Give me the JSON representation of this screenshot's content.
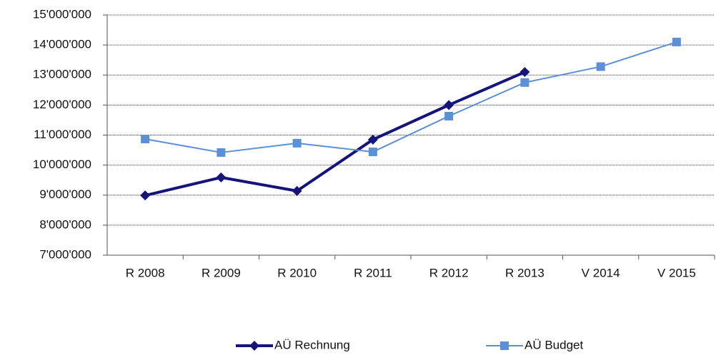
{
  "chart_data": {
    "type": "line",
    "categories": [
      "R 2008",
      "R 2009",
      "R 2010",
      "R 2011",
      "R 2012",
      "R 2013",
      "V 2014",
      "V 2015"
    ],
    "series": [
      {
        "name": "AÜ Rechnung",
        "color": "#14147a",
        "marker": "diamond",
        "values": [
          8990000,
          9590000,
          9140000,
          10850000,
          12000000,
          13100000,
          null,
          null
        ]
      },
      {
        "name": "AÜ Budget",
        "color": "#5b8fd6",
        "marker": "square",
        "values": [
          10870000,
          10420000,
          10730000,
          10440000,
          11630000,
          12750000,
          13280000,
          14100000
        ]
      }
    ],
    "ylim": [
      7000000,
      15000000
    ],
    "yticks": [
      {
        "value": 7000000,
        "label": "7'000'000"
      },
      {
        "value": 8000000,
        "label": "8'000'000"
      },
      {
        "value": 9000000,
        "label": "9'000'000"
      },
      {
        "value": 10000000,
        "label": "10'000'000"
      },
      {
        "value": 11000000,
        "label": "11'000'000"
      },
      {
        "value": 12000000,
        "label": "12'000'000"
      },
      {
        "value": 13000000,
        "label": "13'000'000"
      },
      {
        "value": 14000000,
        "label": "14'000'000"
      },
      {
        "value": 15000000,
        "label": "15'000'000"
      }
    ],
    "grid": true,
    "legend": "bottom"
  }
}
